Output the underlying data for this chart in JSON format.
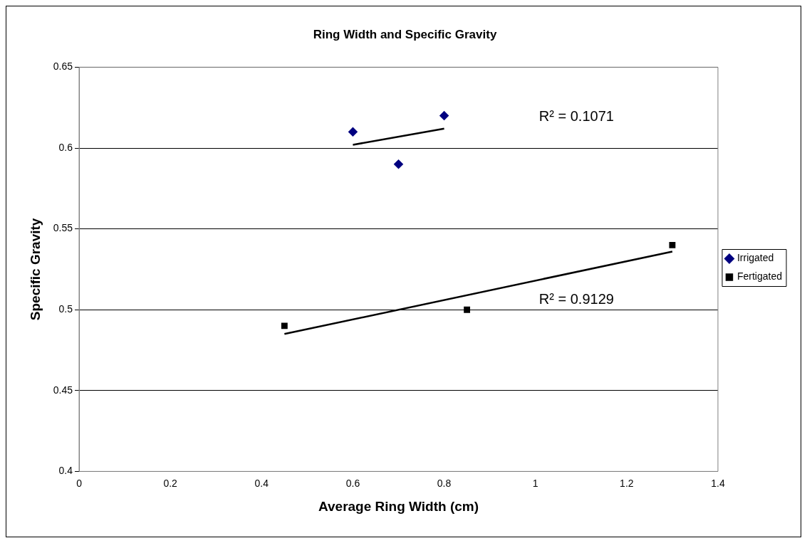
{
  "chart_data": {
    "type": "scatter",
    "title": "Ring Width and Specific Gravity",
    "xlabel": "Average Ring Width (cm)",
    "ylabel": "Specific Gravity",
    "series": [
      {
        "name": "Irrigated",
        "color": "#000080",
        "marker": "diamond",
        "x": [
          0.6,
          0.7,
          0.8
        ],
        "values": [
          0.61,
          0.59,
          0.62
        ]
      },
      {
        "name": "Fertigated",
        "color": "#000000",
        "marker": "square",
        "x": [
          0.45,
          0.85,
          1.3
        ],
        "values": [
          0.49,
          0.5,
          0.54
        ]
      },
      {
        "type": "line",
        "color": "#000000",
        "marker": "none",
        "x": [
          0.6,
          0.8
        ],
        "values": [
          0.602,
          0.612
        ]
      },
      {
        "type": "line",
        "color": "#000000",
        "marker": "none",
        "x": [
          0.45,
          1.3
        ],
        "values": [
          0.485,
          0.536
        ]
      }
    ],
    "annotations": [
      "R² = 0.1071",
      "R² = 0.9129"
    ],
    "xlim": [
      0,
      1.4
    ],
    "xticks": [
      0,
      0.2,
      0.4,
      0.6,
      0.8,
      1,
      1.2,
      1.4
    ],
    "ylim": [
      0.4,
      0.65
    ],
    "yticks": [
      0.4,
      0.45,
      0.5,
      0.55,
      0.6,
      0.65
    ],
    "grid": "y",
    "legend": "right"
  }
}
